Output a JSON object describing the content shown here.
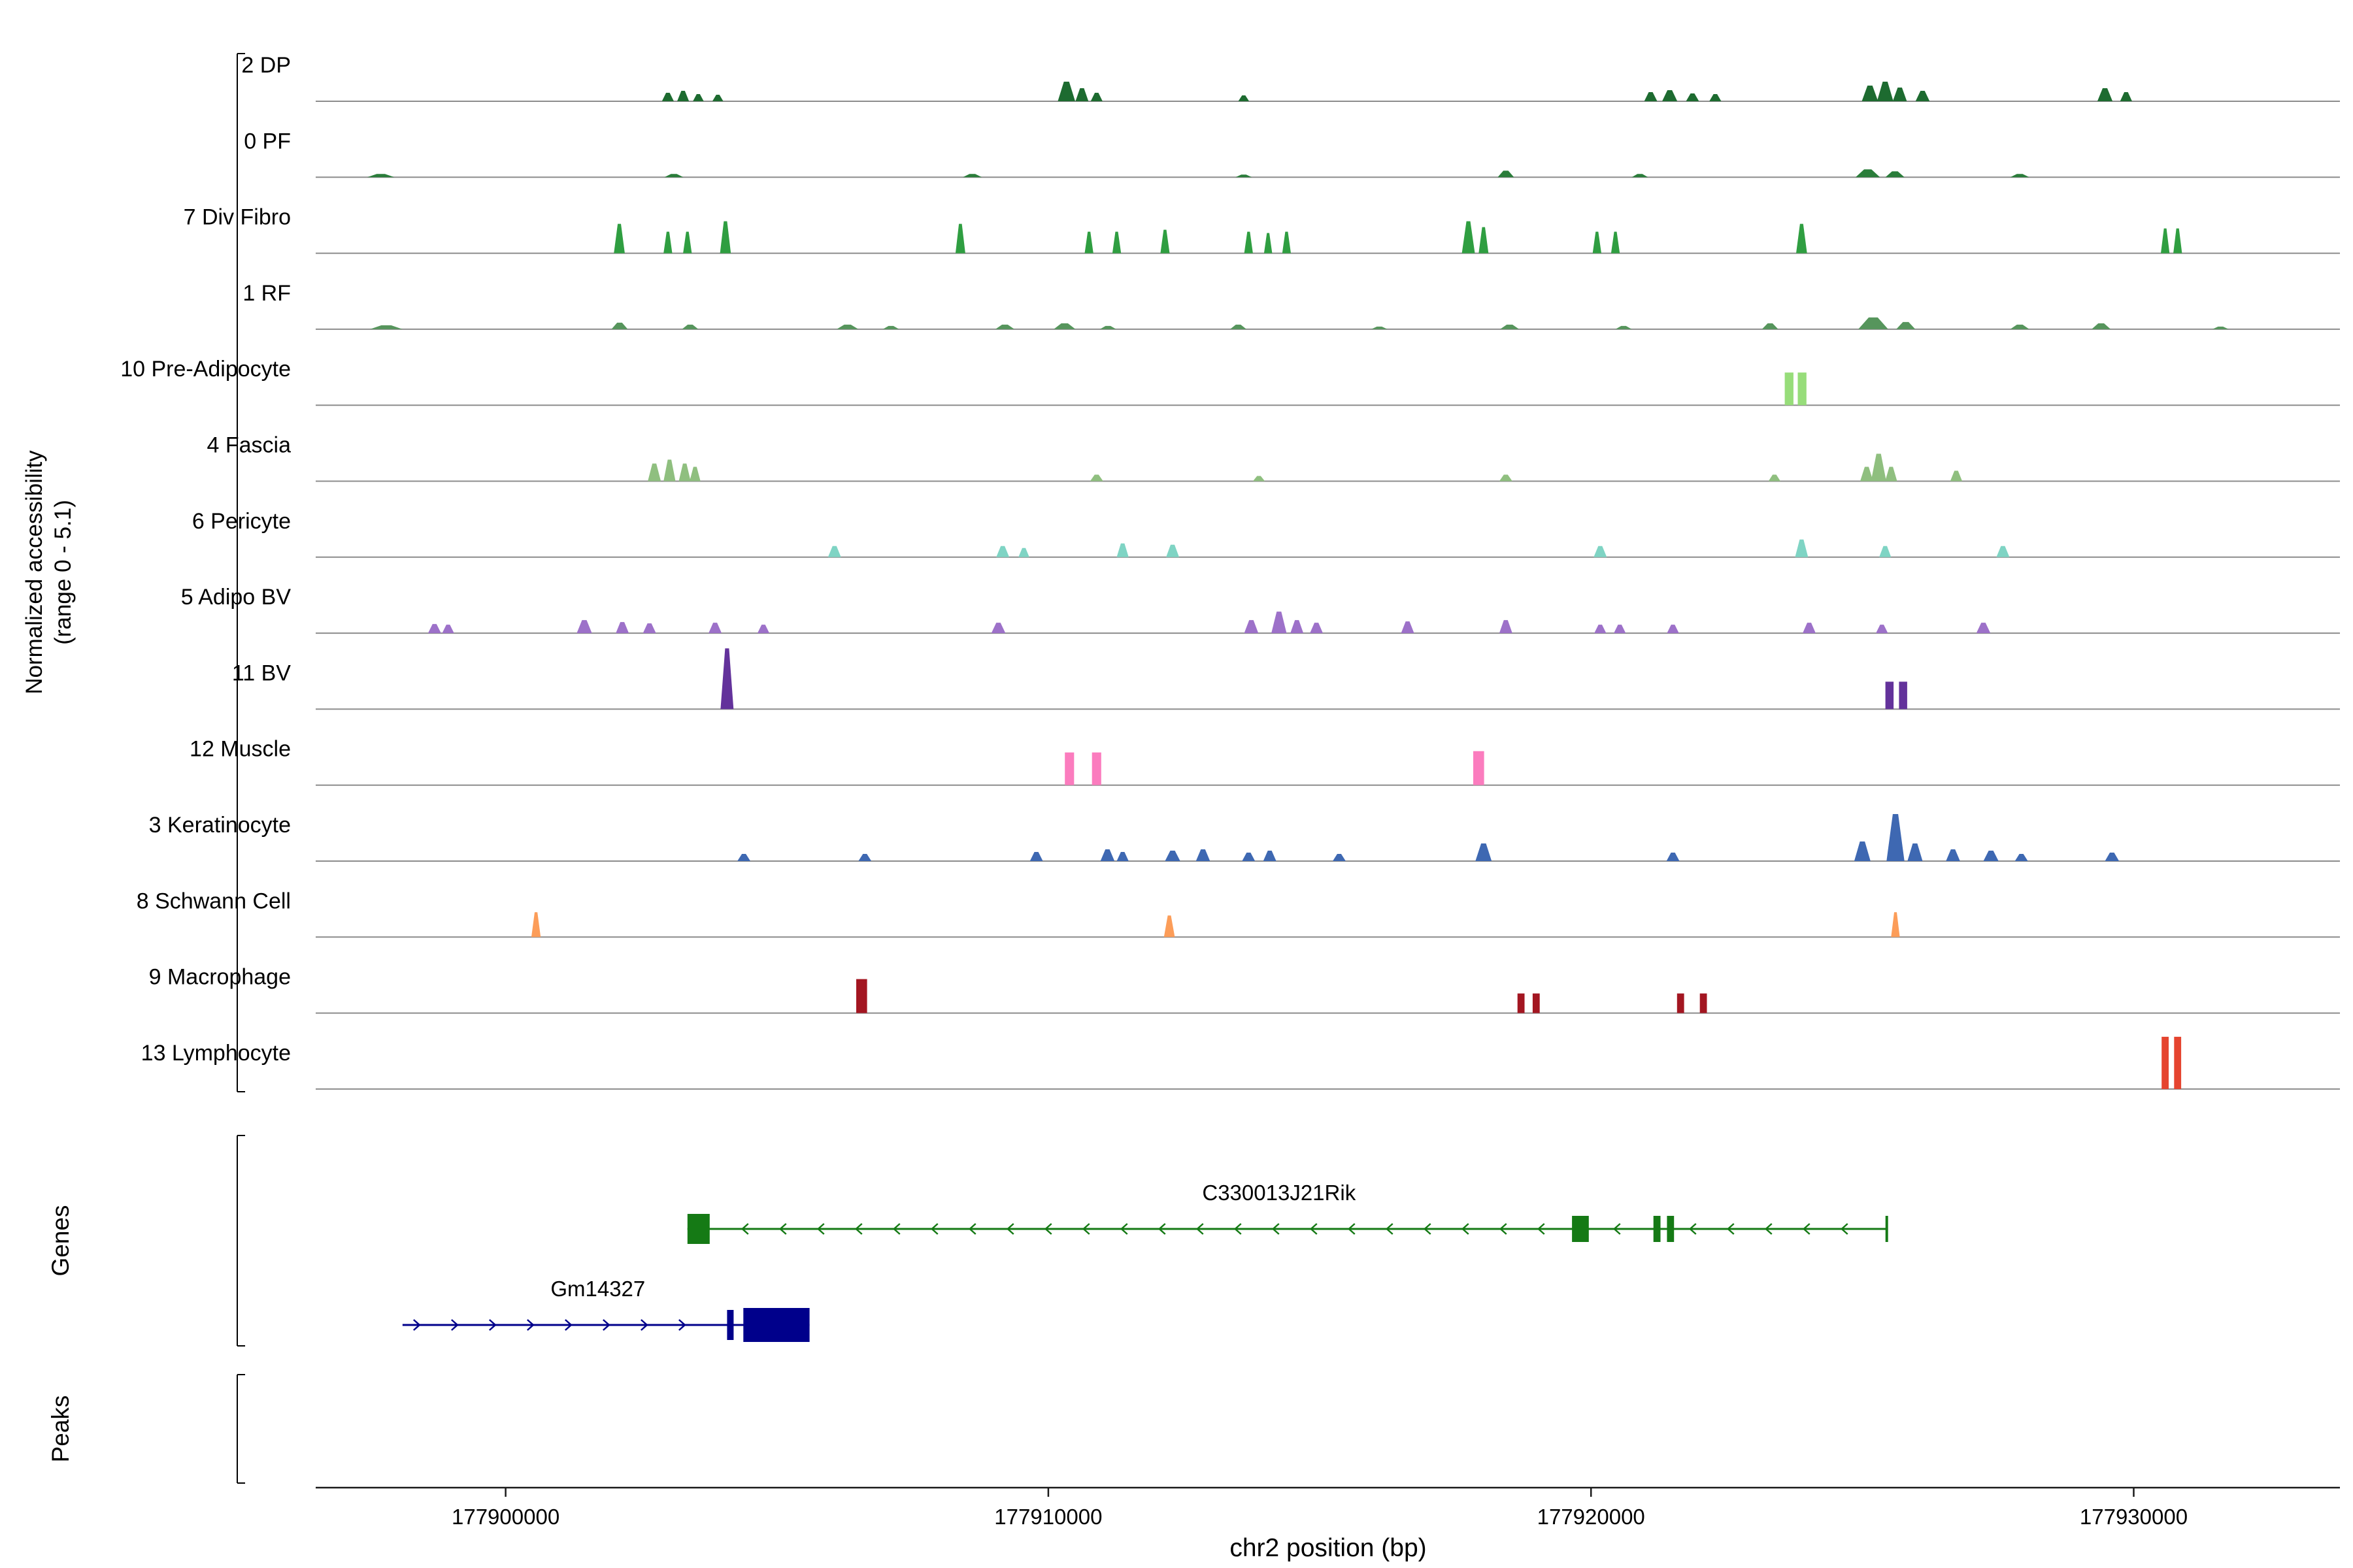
{
  "sections": {
    "tracks_ylabel_line1": "Normalized accessibility",
    "tracks_ylabel_line2": "(range 0 - 5.1)",
    "genes": "Genes",
    "peaks": "Peaks"
  },
  "chart_data": {
    "type": "area",
    "xlabel": "chr2 position (bp)",
    "ylabel": "Normalized accessibility (range 0 - 5.1)",
    "track_y_range": [
      0,
      5.1
    ],
    "x_range_bp": [
      177896500,
      177933800
    ],
    "x_ticks": [
      177900000,
      177910000,
      177920000,
      177930000
    ],
    "peak_format": "center_bp, height_fraction, width_bp, flat_top_flag",
    "tracks": [
      {
        "label": "2 DP",
        "color": "#1d6b30",
        "peaks": [
          [
            177902990,
            0.13,
            220
          ],
          [
            177903270,
            0.16,
            220
          ],
          [
            177903550,
            0.11,
            200
          ],
          [
            177903910,
            0.1,
            200
          ],
          [
            177910335,
            0.3,
            320
          ],
          [
            177910620,
            0.2,
            240
          ],
          [
            177910890,
            0.13,
            220
          ],
          [
            177913600,
            0.09,
            200
          ],
          [
            177921100,
            0.14,
            240
          ],
          [
            177921450,
            0.17,
            280
          ],
          [
            177921870,
            0.12,
            240
          ],
          [
            177922290,
            0.11,
            220
          ],
          [
            177925140,
            0.24,
            300
          ],
          [
            177925420,
            0.3,
            300
          ],
          [
            177925690,
            0.21,
            260
          ],
          [
            177926110,
            0.16,
            260
          ],
          [
            177929470,
            0.2,
            280
          ],
          [
            177929860,
            0.14,
            220
          ]
        ]
      },
      {
        "label": "0 PF",
        "color": "#2a7d3a",
        "peaks": [
          [
            177897700,
            0.05,
            500
          ],
          [
            177903100,
            0.05,
            350
          ],
          [
            177908600,
            0.05,
            350
          ],
          [
            177913600,
            0.04,
            300
          ],
          [
            177918430,
            0.1,
            300
          ],
          [
            177920900,
            0.05,
            300
          ],
          [
            177925100,
            0.12,
            450
          ],
          [
            177925600,
            0.09,
            350
          ],
          [
            177927900,
            0.05,
            350
          ]
        ]
      },
      {
        "label": "7 Div Fibro",
        "color": "#2f9e41",
        "peaks": [
          [
            177902095,
            0.45,
            200
          ],
          [
            177902990,
            0.33,
            160
          ],
          [
            177903350,
            0.33,
            160
          ],
          [
            177904050,
            0.49,
            200
          ],
          [
            177908380,
            0.45,
            180
          ],
          [
            177910750,
            0.33,
            160
          ],
          [
            177911260,
            0.33,
            160
          ],
          [
            177912150,
            0.36,
            170
          ],
          [
            177913690,
            0.33,
            160
          ],
          [
            177914050,
            0.31,
            150
          ],
          [
            177914390,
            0.33,
            160
          ],
          [
            177917740,
            0.49,
            240
          ],
          [
            177918020,
            0.4,
            180
          ],
          [
            177920110,
            0.33,
            160
          ],
          [
            177920450,
            0.33,
            160
          ],
          [
            177923880,
            0.45,
            200
          ],
          [
            177930580,
            0.38,
            160
          ],
          [
            177930810,
            0.38,
            160
          ]
        ]
      },
      {
        "label": "1 RF",
        "color": "#56955c",
        "peaks": [
          [
            177897800,
            0.06,
            600
          ],
          [
            177902100,
            0.1,
            300
          ],
          [
            177903400,
            0.07,
            300
          ],
          [
            177906300,
            0.07,
            400
          ],
          [
            177907100,
            0.05,
            300
          ],
          [
            177909200,
            0.07,
            350
          ],
          [
            177910300,
            0.09,
            400
          ],
          [
            177911100,
            0.05,
            300
          ],
          [
            177913500,
            0.07,
            300
          ],
          [
            177916100,
            0.04,
            300
          ],
          [
            177918500,
            0.07,
            350
          ],
          [
            177920600,
            0.05,
            300
          ],
          [
            177923300,
            0.09,
            300
          ],
          [
            177925200,
            0.18,
            550
          ],
          [
            177925800,
            0.11,
            350
          ],
          [
            177927900,
            0.07,
            350
          ],
          [
            177929400,
            0.09,
            350
          ],
          [
            177931600,
            0.04,
            300
          ]
        ]
      },
      {
        "label": "10 Pre-Adipocyte",
        "color": "#97dd7a",
        "peaks": [
          [
            177923650,
            0.5,
            160,
            1
          ],
          [
            177923890,
            0.5,
            160,
            1
          ]
        ]
      },
      {
        "label": "4 Fascia",
        "color": "#8fbf7f",
        "peaks": [
          [
            177902740,
            0.27,
            240
          ],
          [
            177903020,
            0.33,
            220
          ],
          [
            177903300,
            0.27,
            220
          ],
          [
            177903490,
            0.22,
            200
          ],
          [
            177910890,
            0.1,
            240
          ],
          [
            177913880,
            0.08,
            220
          ],
          [
            177918430,
            0.1,
            240
          ],
          [
            177923380,
            0.1,
            220
          ],
          [
            177925080,
            0.22,
            240
          ],
          [
            177925300,
            0.42,
            280
          ],
          [
            177925530,
            0.22,
            220
          ],
          [
            177926730,
            0.16,
            220
          ]
        ]
      },
      {
        "label": "6 Pericyte",
        "color": "#7fd4c4",
        "peaks": [
          [
            177906060,
            0.17,
            240
          ],
          [
            177909160,
            0.17,
            240
          ],
          [
            177909550,
            0.14,
            200
          ],
          [
            177911370,
            0.21,
            220
          ],
          [
            177912290,
            0.19,
            240
          ],
          [
            177920170,
            0.17,
            240
          ],
          [
            177923880,
            0.27,
            240
          ],
          [
            177925420,
            0.17,
            220
          ],
          [
            177927590,
            0.17,
            240
          ]
        ]
      },
      {
        "label": "5 Adipo BV",
        "color": "#9d71c9",
        "peaks": [
          [
            177898690,
            0.14,
            240
          ],
          [
            177898940,
            0.13,
            220
          ],
          [
            177901450,
            0.2,
            280
          ],
          [
            177902150,
            0.17,
            240
          ],
          [
            177902650,
            0.15,
            240
          ],
          [
            177903860,
            0.16,
            240
          ],
          [
            177904750,
            0.13,
            220
          ],
          [
            177909080,
            0.16,
            260
          ],
          [
            177913740,
            0.2,
            260
          ],
          [
            177914250,
            0.33,
            280
          ],
          [
            177914580,
            0.2,
            240
          ],
          [
            177914940,
            0.16,
            240
          ],
          [
            177916620,
            0.18,
            240
          ],
          [
            177918430,
            0.2,
            240
          ],
          [
            177920170,
            0.13,
            220
          ],
          [
            177920530,
            0.13,
            220
          ],
          [
            177921510,
            0.13,
            220
          ],
          [
            177924020,
            0.16,
            240
          ],
          [
            177925360,
            0.13,
            220
          ],
          [
            177927230,
            0.16,
            260
          ]
        ]
      },
      {
        "label": "11 BV",
        "color": "#63329b",
        "peaks": [
          [
            177904080,
            0.93,
            240
          ],
          [
            177925500,
            0.42,
            150,
            1
          ],
          [
            177925750,
            0.42,
            150,
            1
          ]
        ]
      },
      {
        "label": "12 Muscle",
        "color": "#fb7cbe",
        "peaks": [
          [
            177910390,
            0.5,
            170,
            1
          ],
          [
            177910890,
            0.5,
            170,
            1
          ],
          [
            177917930,
            0.52,
            200,
            1
          ]
        ]
      },
      {
        "label": "3 Keratinocyte",
        "color": "#3e68b2",
        "peaks": [
          [
            177904390,
            0.11,
            240
          ],
          [
            177906620,
            0.11,
            240
          ],
          [
            177909780,
            0.14,
            240
          ],
          [
            177911090,
            0.18,
            260
          ],
          [
            177911370,
            0.14,
            220
          ],
          [
            177912290,
            0.16,
            280
          ],
          [
            177912850,
            0.18,
            260
          ],
          [
            177913690,
            0.13,
            240
          ],
          [
            177914080,
            0.16,
            240
          ],
          [
            177915360,
            0.11,
            240
          ],
          [
            177918020,
            0.27,
            300
          ],
          [
            177921510,
            0.13,
            240
          ],
          [
            177925000,
            0.3,
            300
          ],
          [
            177925610,
            0.72,
            330
          ],
          [
            177925970,
            0.27,
            280
          ],
          [
            177926670,
            0.18,
            260
          ],
          [
            177927370,
            0.16,
            280
          ],
          [
            177927930,
            0.11,
            240
          ],
          [
            177929600,
            0.13,
            260
          ]
        ]
      },
      {
        "label": "8 Schwann Cell",
        "color": "#fc9d59",
        "peaks": [
          [
            177900560,
            0.38,
            170
          ],
          [
            177912230,
            0.33,
            200
          ],
          [
            177925610,
            0.38,
            160
          ]
        ]
      },
      {
        "label": "9 Macrophage",
        "color": "#a31621",
        "peaks": [
          [
            177906560,
            0.52,
            200,
            1
          ],
          [
            177918710,
            0.3,
            130,
            1
          ],
          [
            177918990,
            0.3,
            130,
            1
          ],
          [
            177921650,
            0.3,
            130,
            1
          ],
          [
            177922070,
            0.3,
            130,
            1
          ]
        ]
      },
      {
        "label": "13 Lymphocyte",
        "color": "#e5442f",
        "peaks": [
          [
            177930580,
            0.8,
            130,
            1
          ],
          [
            177930810,
            0.8,
            130,
            1
          ]
        ]
      }
    ],
    "genes": [
      {
        "name": "C330013J21Rik",
        "color": "#157a15",
        "strand": "-",
        "start": 177903350,
        "end": 177925450,
        "label_bp": 177914250,
        "end_tick": true,
        "exons": [
          {
            "start": 177903350,
            "end": 177903760,
            "h": 46
          },
          {
            "start": 177919650,
            "end": 177919960,
            "h": 40
          },
          {
            "start": 177921150,
            "end": 177921280,
            "h": 40
          },
          {
            "start": 177921400,
            "end": 177921530,
            "h": 40
          }
        ]
      },
      {
        "name": "Gm14327",
        "color": "#00008b",
        "strand": "+",
        "start": 177898100,
        "end": 177905600,
        "label_bp": 177901700,
        "end_tick": false,
        "exons": [
          {
            "start": 177904080,
            "end": 177904200,
            "h": 46
          },
          {
            "start": 177904380,
            "end": 177905600,
            "h": 52
          }
        ]
      }
    ],
    "peaks_row": {
      "label": "Peaks",
      "items": []
    }
  }
}
